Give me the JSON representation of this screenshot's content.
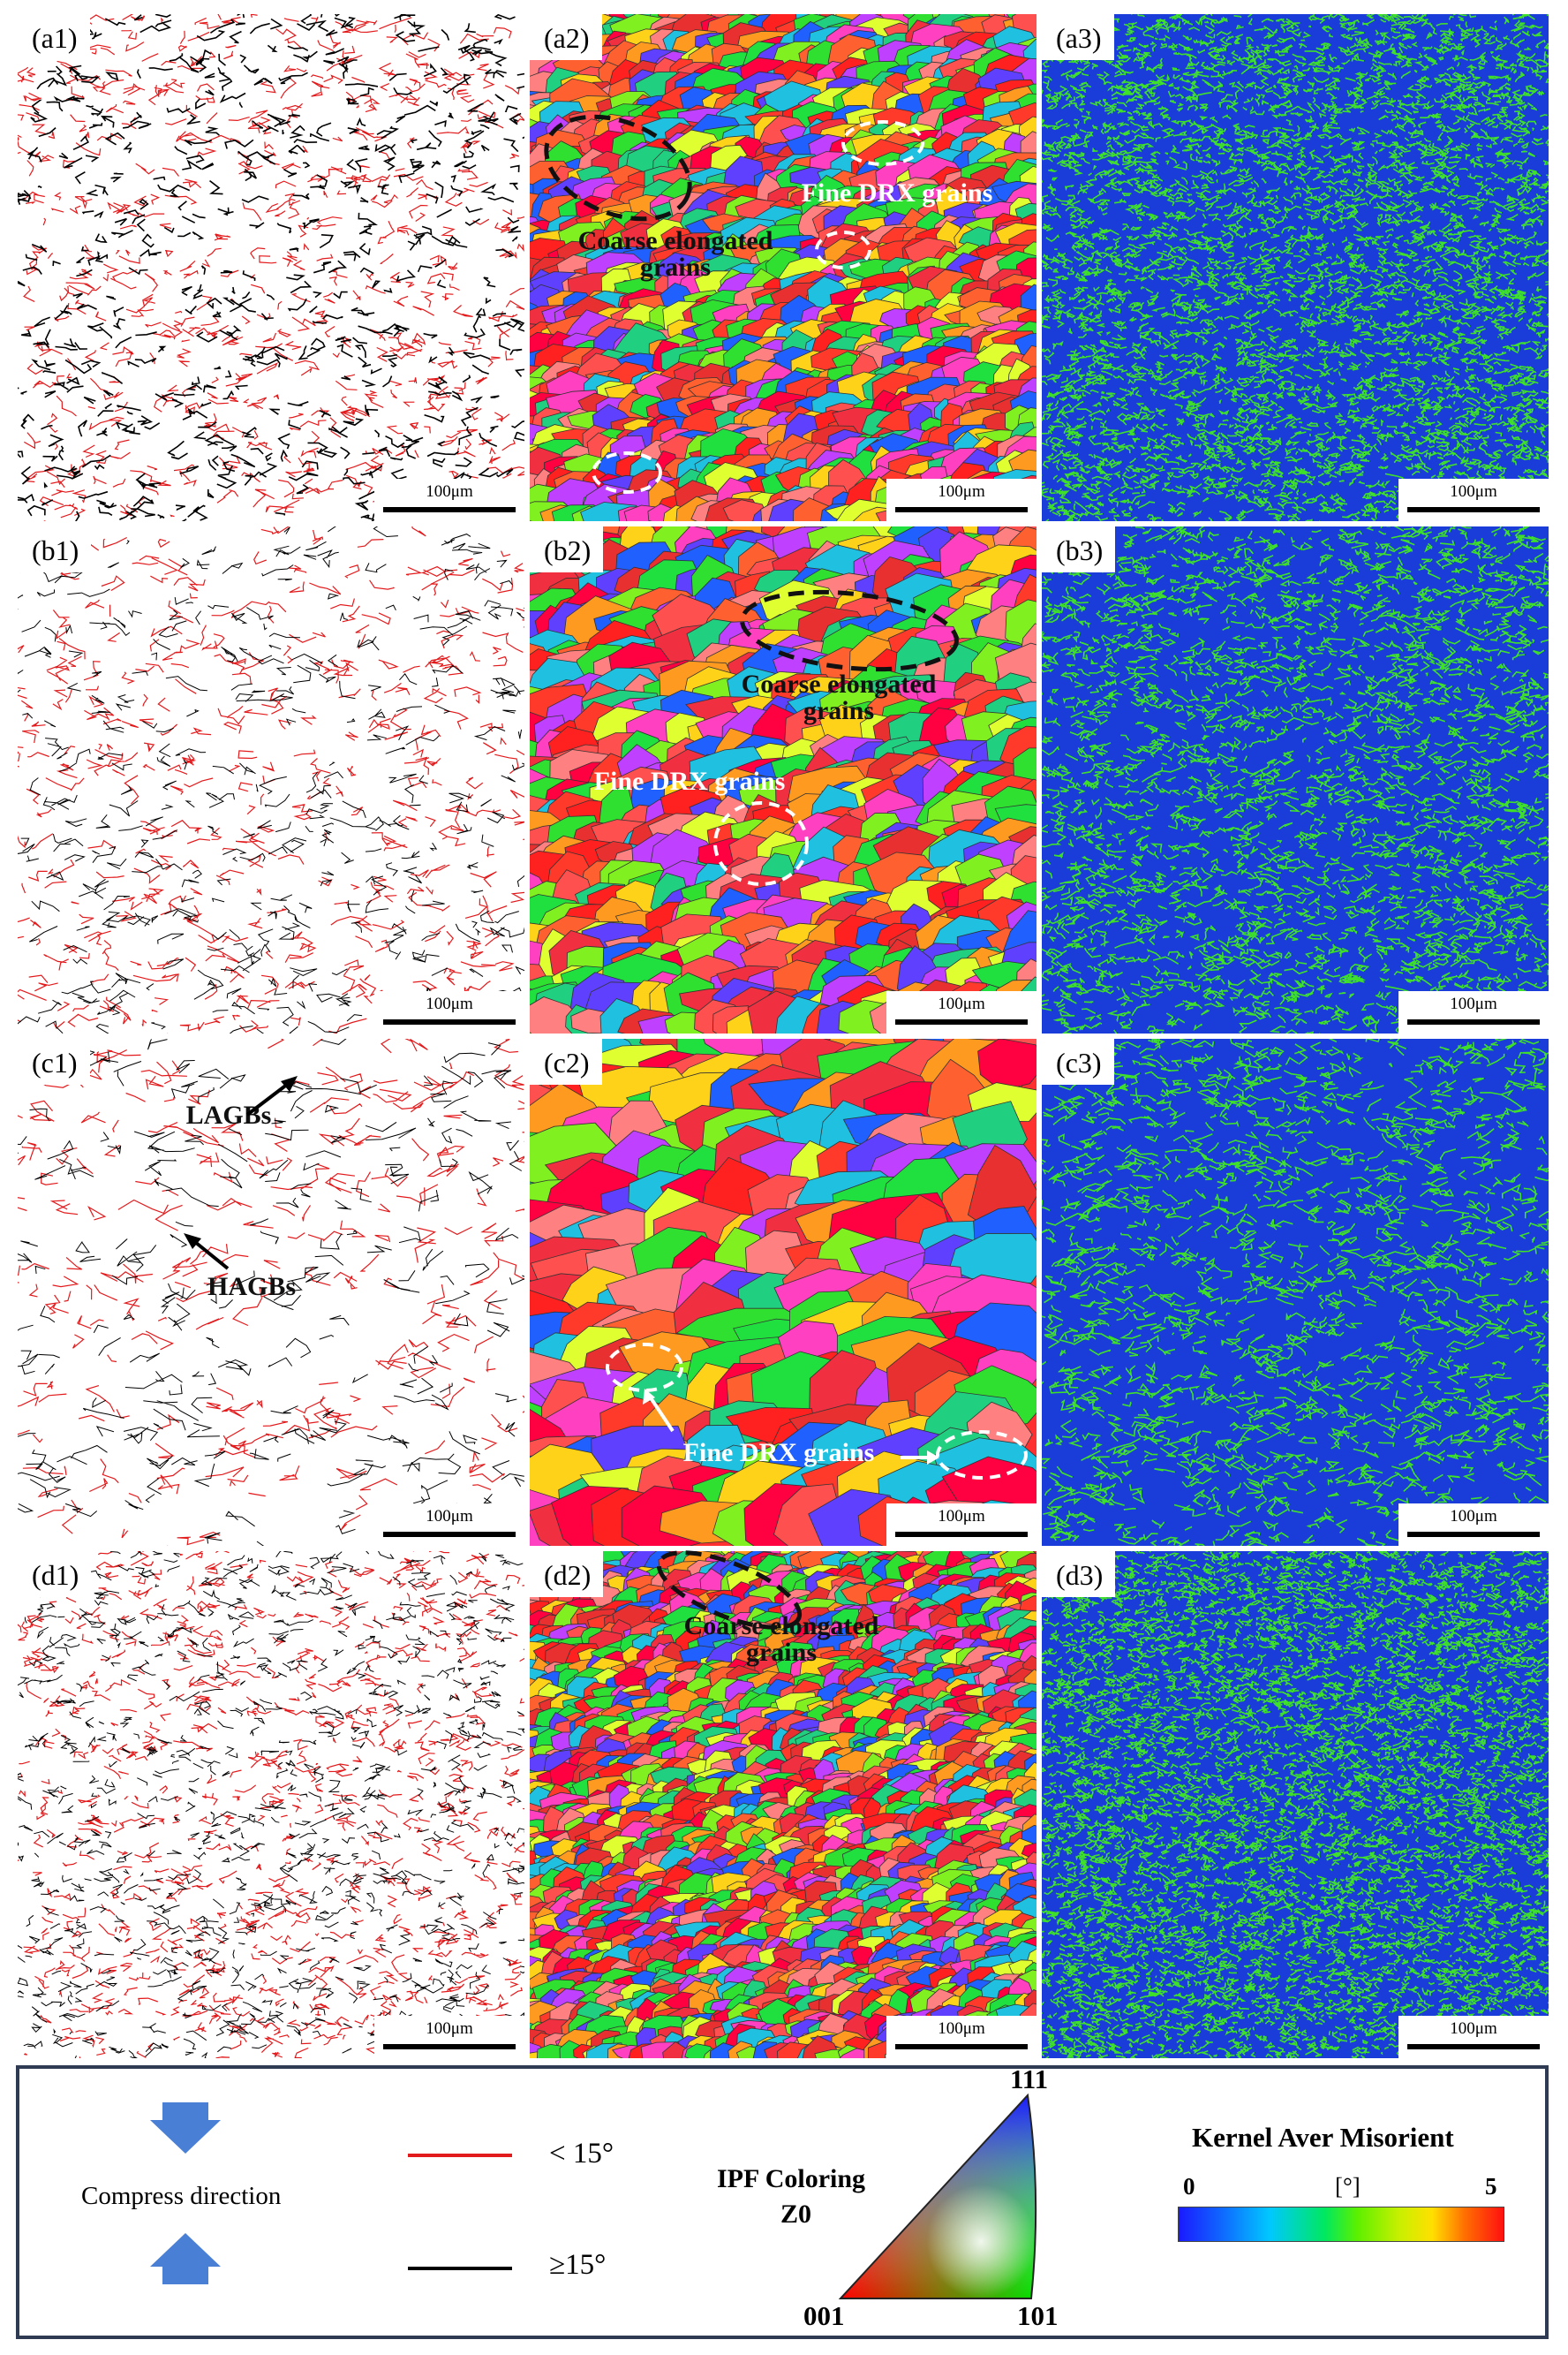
{
  "panels": [
    {
      "label": "(a1)",
      "kind": "gb",
      "seed": 11,
      "density": 34
    },
    {
      "label": "(a2)",
      "kind": "ipf",
      "seed": 12,
      "density": 30
    },
    {
      "label": "(a3)",
      "kind": "kam",
      "seed": 13,
      "density": 60
    },
    {
      "label": "(b1)",
      "kind": "gb",
      "seed": 21,
      "density": 28
    },
    {
      "label": "(b2)",
      "kind": "ipf",
      "seed": 22,
      "density": 22
    },
    {
      "label": "(b3)",
      "kind": "kam",
      "seed": 23,
      "density": 45
    },
    {
      "label": "(c1)",
      "kind": "gb",
      "seed": 31,
      "density": 22
    },
    {
      "label": "(c2)",
      "kind": "ipf",
      "seed": 32,
      "density": 14
    },
    {
      "label": "(c3)",
      "kind": "kam",
      "seed": 33,
      "density": 35
    },
    {
      "label": "(d1)",
      "kind": "gb",
      "seed": 41,
      "density": 40
    },
    {
      "label": "(d2)",
      "kind": "ipf",
      "seed": 42,
      "density": 38
    },
    {
      "label": "(d3)",
      "kind": "kam",
      "seed": 43,
      "density": 70
    }
  ],
  "scale_bar_text": "100μm",
  "annotations": {
    "a2_coarse": "Coarse elongated\ngrains",
    "a2_fine": "Fine DRX grains",
    "b2_coarse": "Coarse elongated\ngrains",
    "b2_fine": "Fine DRX grains",
    "c1_lagbs": "LAGBs",
    "c1_hagbs": "HAGBs",
    "c2_fine": "Fine DRX grains",
    "d2_coarse": "Coarse elongated\ngrains"
  },
  "legend": {
    "compress_direction": "Compress direction",
    "lagb_label": "< 15°",
    "hagb_label": "≥15°",
    "ipf_title_1": "IPF Coloring",
    "ipf_title_2": "Z0",
    "ipf_corner_111": "111",
    "ipf_corner_001": "001",
    "ipf_corner_101": "101",
    "kam_title": "Kernel Aver Misorient",
    "kam_min": "0",
    "kam_unit": "[°]",
    "kam_max": "5"
  },
  "colors": {
    "lagb": "#e31a1c",
    "hagb": "#000000",
    "kam_background": "#1a3cd8",
    "kam_feature": "#3fe02a",
    "arrow_blue": "#4a7fd6",
    "legend_border": "#2f3b52"
  }
}
